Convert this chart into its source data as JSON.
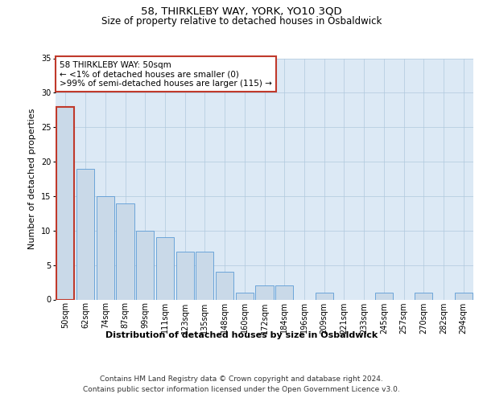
{
  "title": "58, THIRKLEBY WAY, YORK, YO10 3QD",
  "subtitle": "Size of property relative to detached houses in Osbaldwick",
  "xlabel": "Distribution of detached houses by size in Osbaldwick",
  "ylabel": "Number of detached properties",
  "categories": [
    "50sqm",
    "62sqm",
    "74sqm",
    "87sqm",
    "99sqm",
    "111sqm",
    "123sqm",
    "135sqm",
    "148sqm",
    "160sqm",
    "172sqm",
    "184sqm",
    "196sqm",
    "209sqm",
    "221sqm",
    "233sqm",
    "245sqm",
    "257sqm",
    "270sqm",
    "282sqm",
    "294sqm"
  ],
  "values": [
    28,
    19,
    15,
    14,
    10,
    9,
    7,
    7,
    4,
    1,
    2,
    2,
    0,
    1,
    0,
    0,
    1,
    0,
    1,
    0,
    1
  ],
  "bar_color": "#c9d9e8",
  "bar_edge_color": "#5b9bd5",
  "highlight_bar_index": 0,
  "highlight_edge_color": "#c0392b",
  "annotation_text": "58 THIRKLEBY WAY: 50sqm\n← <1% of detached houses are smaller (0)\n>99% of semi-detached houses are larger (115) →",
  "annotation_box_color": "#ffffff",
  "annotation_box_edge_color": "#c0392b",
  "ylim": [
    0,
    35
  ],
  "yticks": [
    0,
    5,
    10,
    15,
    20,
    25,
    30,
    35
  ],
  "footer_line1": "Contains HM Land Registry data © Crown copyright and database right 2024.",
  "footer_line2": "Contains public sector information licensed under the Open Government Licence v3.0.",
  "bg_color": "#dce9f5",
  "title_fontsize": 9.5,
  "subtitle_fontsize": 8.5,
  "ylabel_fontsize": 8,
  "xlabel_fontsize": 8,
  "tick_fontsize": 7,
  "annotation_fontsize": 7.5,
  "footer_fontsize": 6.5
}
